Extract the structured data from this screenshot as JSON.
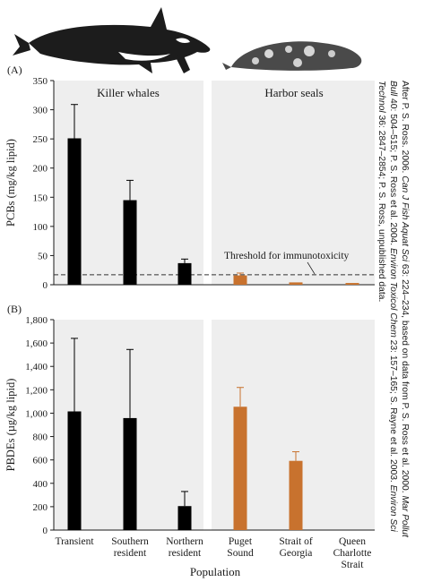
{
  "colors": {
    "killer_whale_bar": "#000000",
    "harbor_seal_bar": "#c8722e",
    "panel_bg": "#eeeeee",
    "threshold_line": "#333333"
  },
  "icons": [
    "killer-whale-illustration",
    "harbor-seal-illustration"
  ],
  "credit": {
    "p1": "After P. S. Ross. 2006. ",
    "p2": "Can J Fish Aquat Sci",
    "p3": " 63: 224–234, based on data from P. S. Ross et al. 2000. ",
    "p4": "Mar Pollut Bull",
    "p5": " 40: 504–515; P. S. Ross et al. 2004. ",
    "p6": "Environ Toxicol Chem",
    "p7": " 23: 157–165; S. Rayne et al. 2003. ",
    "p8": "Environ Sci Technol",
    "p9": " 36: 2847–2854; P. S. Ross, unpublished data."
  },
  "chart_data": [
    {
      "type": "bar",
      "panel_label": "(A)",
      "ylabel": "PCBs (mg/kg lipid)",
      "xlabel": "",
      "ylim": [
        0,
        350
      ],
      "yticks": [
        "0",
        "50",
        "100",
        "150",
        "200",
        "250",
        "300",
        "350"
      ],
      "group_labels": [
        "Killer whales",
        "Harbor seals"
      ],
      "categories": [
        "Transient",
        "Southern resident",
        "Northern resident",
        "Puget Sound",
        "Strait of Georgia",
        "Queen Charlotte Strait"
      ],
      "values": [
        251,
        145,
        37,
        16,
        4,
        3
      ],
      "error_upper": [
        309,
        179,
        44,
        20,
        null,
        null
      ],
      "threshold": {
        "value": 17,
        "label": "Threshold for immunotoxicity"
      }
    },
    {
      "type": "bar",
      "panel_label": "(B)",
      "ylabel": "PBDEs (µg/kg lipid)",
      "xlabel": "Population",
      "ylim": [
        0,
        1800
      ],
      "yticks": [
        "0",
        "200",
        "400",
        "600",
        "800",
        "1,000",
        "1,200",
        "1,400",
        "1,600",
        "1,800"
      ],
      "categories": [
        "Transient",
        "Southern resident",
        "Northern resident",
        "Puget Sound",
        "Strait of Georgia",
        "Queen Charlotte Strait"
      ],
      "category_lines": [
        [
          "Transient"
        ],
        [
          "Southern",
          "resident"
        ],
        [
          "Northern",
          "resident"
        ],
        [
          "Puget",
          "Sound"
        ],
        [
          "Strait of",
          "Georgia"
        ],
        [
          "Queen",
          "Charlotte",
          "Strait"
        ]
      ],
      "values": [
        1015,
        958,
        205,
        1055,
        592,
        0
      ],
      "error_upper": [
        1640,
        1545,
        330,
        1220,
        670,
        null
      ]
    }
  ]
}
